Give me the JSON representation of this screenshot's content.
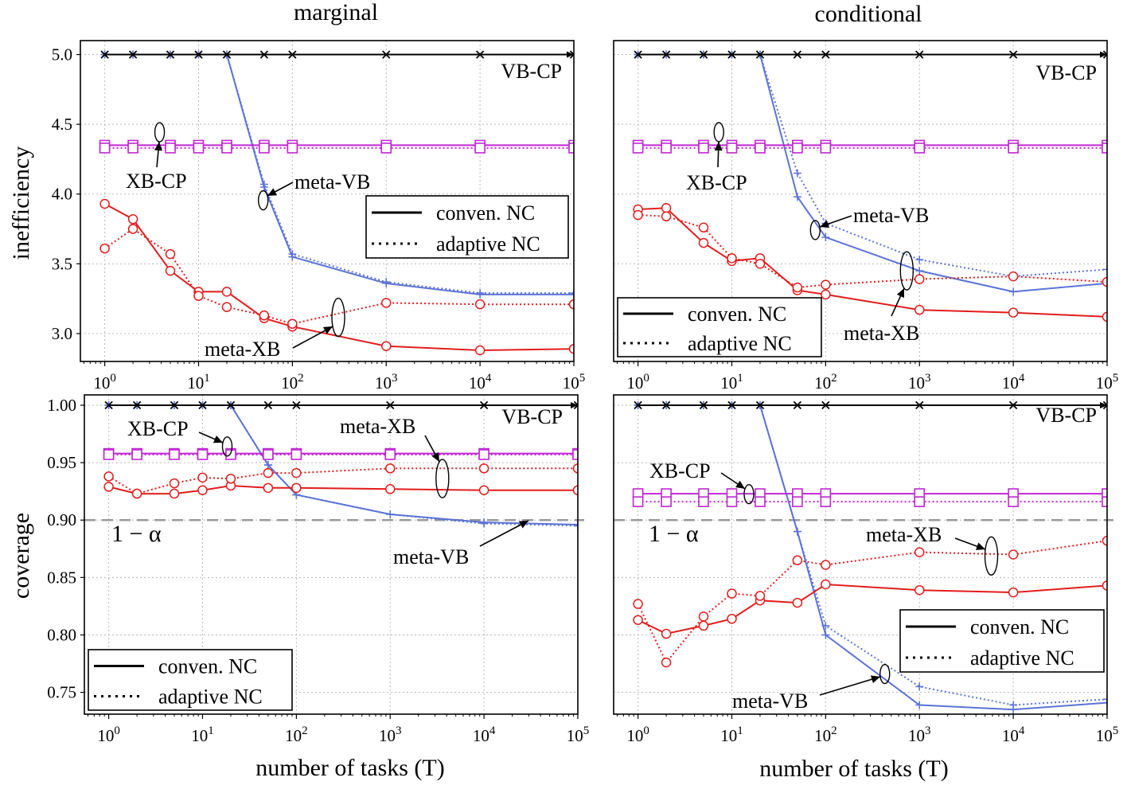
{
  "figure": {
    "col_titles": [
      "marginal",
      "conditional"
    ],
    "xlabel": "number of tasks (T)",
    "ylabels": [
      "inefficiency",
      "coverage"
    ]
  },
  "legend": {
    "solid_label": "conven. NC",
    "dotted_label": "adaptive NC"
  },
  "colors": {
    "vbcp": "#000000",
    "xbcp": "#c026d3",
    "metavb": "#5b73d6",
    "metaxb": "#e21d1d",
    "target": "#999999"
  },
  "chart_data": [
    {
      "panel": "top-left",
      "type": "line",
      "title": "marginal",
      "ylabel": "inefficiency",
      "xlabel": "",
      "xscale": "log",
      "xlim": [
        0.55,
        100000
      ],
      "ylim": [
        2.8,
        5.1
      ],
      "yticks": [
        3.0,
        3.5,
        4.0,
        4.5,
        5.0
      ],
      "ytick_labels": [
        "3.0",
        "3.5",
        "4.0",
        "4.5",
        "5.0"
      ],
      "xticks": [
        1,
        10,
        100,
        1000,
        10000,
        100000
      ],
      "xtick_labels": [
        "10^0",
        "10^1",
        "10^2",
        "10^3",
        "10^4",
        "10^5"
      ],
      "x": [
        1,
        2,
        5,
        10,
        20,
        50,
        100,
        1000,
        10000,
        100000
      ],
      "series": [
        {
          "name": "VB-CP conven.",
          "family": "vbcp",
          "style": "solid",
          "values": [
            5.0,
            5.0,
            5.0,
            5.0,
            5.0,
            5.0,
            5.0,
            5.0,
            5.0,
            5.0
          ]
        },
        {
          "name": "VB-CP adaptive",
          "family": "vbcp",
          "style": "dotted",
          "values": [
            5.0,
            5.0,
            5.0,
            5.0,
            5.0,
            5.0,
            5.0,
            5.0,
            5.0,
            5.0
          ]
        },
        {
          "name": "XB-CP conven.",
          "family": "xbcp",
          "style": "solid",
          "values": [
            4.35,
            4.35,
            4.35,
            4.35,
            4.35,
            4.35,
            4.35,
            4.35,
            4.35,
            4.35
          ]
        },
        {
          "name": "XB-CP adaptive",
          "family": "xbcp",
          "style": "dotted",
          "values": [
            4.33,
            4.33,
            4.33,
            4.33,
            4.33,
            4.33,
            4.33,
            4.33,
            4.33,
            4.33
          ]
        },
        {
          "name": "meta-VB conven.",
          "family": "metavb",
          "style": "solid",
          "values": [
            5.0,
            5.0,
            5.0,
            5.0,
            5.0,
            4.05,
            3.55,
            3.36,
            3.28,
            3.28
          ]
        },
        {
          "name": "meta-VB adaptive",
          "family": "metavb",
          "style": "dotted",
          "values": [
            5.0,
            5.0,
            5.0,
            5.0,
            5.0,
            4.07,
            3.57,
            3.37,
            3.29,
            3.29
          ]
        },
        {
          "name": "meta-XB conven.",
          "family": "metaxb",
          "style": "solid",
          "values": [
            3.93,
            3.82,
            3.45,
            3.3,
            3.3,
            3.11,
            3.05,
            2.91,
            2.88,
            2.89
          ]
        },
        {
          "name": "meta-XB adaptive",
          "family": "metaxb",
          "style": "dotted",
          "values": [
            3.61,
            3.75,
            3.57,
            3.27,
            3.19,
            3.13,
            3.07,
            3.22,
            3.21,
            3.21
          ]
        }
      ],
      "annotations": [
        "VB-CP",
        "XB-CP",
        "meta-VB",
        "meta-XB"
      ],
      "target_label": "",
      "legend_position": "upper-right"
    },
    {
      "panel": "top-right",
      "type": "line",
      "title": "conditional",
      "ylabel": "",
      "xlabel": "",
      "xscale": "log",
      "xlim": [
        0.55,
        100000
      ],
      "ylim": [
        2.8,
        5.1
      ],
      "yticks": [
        3.0,
        3.5,
        4.0,
        4.5,
        5.0
      ],
      "ytick_labels": [],
      "xticks": [
        1,
        10,
        100,
        1000,
        10000,
        100000
      ],
      "xtick_labels": [
        "10^0",
        "10^1",
        "10^2",
        "10^3",
        "10^4",
        "10^5"
      ],
      "x": [
        1,
        2,
        5,
        10,
        20,
        50,
        100,
        1000,
        10000,
        100000
      ],
      "series": [
        {
          "name": "VB-CP conven.",
          "family": "vbcp",
          "style": "solid",
          "values": [
            5.0,
            5.0,
            5.0,
            5.0,
            5.0,
            5.0,
            5.0,
            5.0,
            5.0,
            5.0
          ]
        },
        {
          "name": "VB-CP adaptive",
          "family": "vbcp",
          "style": "dotted",
          "values": [
            5.0,
            5.0,
            5.0,
            5.0,
            5.0,
            5.0,
            5.0,
            5.0,
            5.0,
            5.0
          ]
        },
        {
          "name": "XB-CP conven.",
          "family": "xbcp",
          "style": "solid",
          "values": [
            4.35,
            4.35,
            4.35,
            4.35,
            4.35,
            4.35,
            4.35,
            4.35,
            4.35,
            4.35
          ]
        },
        {
          "name": "XB-CP adaptive",
          "family": "xbcp",
          "style": "dotted",
          "values": [
            4.33,
            4.33,
            4.33,
            4.33,
            4.33,
            4.33,
            4.33,
            4.33,
            4.33,
            4.33
          ]
        },
        {
          "name": "meta-VB conven.",
          "family": "metavb",
          "style": "solid",
          "values": [
            5.0,
            5.0,
            5.0,
            5.0,
            5.0,
            3.98,
            3.69,
            3.45,
            3.3,
            3.36
          ]
        },
        {
          "name": "meta-VB adaptive",
          "family": "metavb",
          "style": "dotted",
          "values": [
            5.0,
            5.0,
            5.0,
            5.0,
            5.0,
            4.15,
            3.79,
            3.53,
            3.41,
            3.46
          ]
        },
        {
          "name": "meta-XB conven.",
          "family": "metaxb",
          "style": "solid",
          "values": [
            3.89,
            3.9,
            3.65,
            3.52,
            3.54,
            3.31,
            3.28,
            3.17,
            3.15,
            3.12
          ]
        },
        {
          "name": "meta-XB adaptive",
          "family": "metaxb",
          "style": "dotted",
          "values": [
            3.85,
            3.84,
            3.76,
            3.54,
            3.5,
            3.33,
            3.35,
            3.39,
            3.41,
            3.37
          ]
        }
      ],
      "annotations": [
        "VB-CP",
        "XB-CP",
        "meta-VB",
        "meta-XB"
      ],
      "target_label": "",
      "legend_position": "lower-left"
    },
    {
      "panel": "bottom-left",
      "type": "line",
      "title": "",
      "ylabel": "coverage",
      "xlabel": "number of tasks (T)",
      "xscale": "log",
      "xlim": [
        0.55,
        100000
      ],
      "ylim": [
        0.731,
        1.009
      ],
      "yticks": [
        0.75,
        0.8,
        0.85,
        0.9,
        0.95,
        1.0
      ],
      "ytick_labels": [
        "0.75",
        "0.80",
        "0.85",
        "0.90",
        "0.95",
        "1.00"
      ],
      "xticks": [
        1,
        10,
        100,
        1000,
        10000,
        100000
      ],
      "xtick_labels": [
        "10^0",
        "10^1",
        "10^2",
        "10^3",
        "10^4",
        "10^5"
      ],
      "x": [
        1,
        2,
        5,
        10,
        20,
        50,
        100,
        1000,
        10000,
        100000
      ],
      "series": [
        {
          "name": "VB-CP conven.",
          "family": "vbcp",
          "style": "solid",
          "values": [
            1.0,
            1.0,
            1.0,
            1.0,
            1.0,
            1.0,
            1.0,
            1.0,
            1.0,
            1.0
          ]
        },
        {
          "name": "VB-CP adaptive",
          "family": "vbcp",
          "style": "dotted",
          "values": [
            1.0,
            1.0,
            1.0,
            1.0,
            1.0,
            1.0,
            1.0,
            1.0,
            1.0,
            1.0
          ]
        },
        {
          "name": "XB-CP conven.",
          "family": "xbcp",
          "style": "solid",
          "values": [
            0.958,
            0.958,
            0.958,
            0.958,
            0.958,
            0.958,
            0.958,
            0.958,
            0.958,
            0.958
          ]
        },
        {
          "name": "XB-CP adaptive",
          "family": "xbcp",
          "style": "dotted",
          "values": [
            0.957,
            0.957,
            0.957,
            0.957,
            0.957,
            0.957,
            0.957,
            0.957,
            0.957,
            0.957
          ]
        },
        {
          "name": "meta-VB conven.",
          "family": "metavb",
          "style": "solid",
          "values": [
            1.0,
            1.0,
            1.0,
            1.0,
            1.0,
            0.948,
            0.922,
            0.905,
            0.898,
            0.896
          ]
        },
        {
          "name": "meta-VB adaptive",
          "family": "metavb",
          "style": "dotted",
          "values": [
            1.0,
            1.0,
            1.0,
            1.0,
            1.0,
            0.948,
            0.922,
            0.905,
            0.897,
            0.895
          ]
        },
        {
          "name": "meta-XB conven.",
          "family": "metaxb",
          "style": "solid",
          "values": [
            0.929,
            0.923,
            0.923,
            0.926,
            0.93,
            0.928,
            0.928,
            0.927,
            0.926,
            0.926
          ]
        },
        {
          "name": "meta-XB adaptive",
          "family": "metaxb",
          "style": "dotted",
          "values": [
            0.938,
            0.923,
            0.932,
            0.937,
            0.936,
            0.941,
            0.941,
            0.945,
            0.945,
            0.945
          ]
        }
      ],
      "target": 0.9,
      "target_label": "1 − α",
      "annotations": [
        "VB-CP",
        "XB-CP",
        "meta-XB",
        "meta-VB"
      ],
      "legend_position": "lower-left"
    },
    {
      "panel": "bottom-right",
      "type": "line",
      "title": "",
      "ylabel": "",
      "xlabel": "number of tasks (T)",
      "xscale": "log",
      "xlim": [
        0.55,
        100000
      ],
      "ylim": [
        0.731,
        1.009
      ],
      "yticks": [
        0.75,
        0.8,
        0.85,
        0.9,
        0.95,
        1.0
      ],
      "ytick_labels": [],
      "xticks": [
        1,
        10,
        100,
        1000,
        10000,
        100000
      ],
      "xtick_labels": [
        "10^0",
        "10^1",
        "10^2",
        "10^3",
        "10^4",
        "10^5"
      ],
      "x": [
        1,
        2,
        5,
        10,
        20,
        50,
        100,
        1000,
        10000,
        100000
      ],
      "series": [
        {
          "name": "VB-CP conven.",
          "family": "vbcp",
          "style": "solid",
          "values": [
            1.0,
            1.0,
            1.0,
            1.0,
            1.0,
            1.0,
            1.0,
            1.0,
            1.0,
            1.0
          ]
        },
        {
          "name": "VB-CP adaptive",
          "family": "vbcp",
          "style": "dotted",
          "values": [
            1.0,
            1.0,
            1.0,
            1.0,
            1.0,
            1.0,
            1.0,
            1.0,
            1.0,
            1.0
          ]
        },
        {
          "name": "XB-CP conven.",
          "family": "xbcp",
          "style": "solid",
          "values": [
            0.923,
            0.923,
            0.923,
            0.923,
            0.923,
            0.923,
            0.923,
            0.923,
            0.923,
            0.923
          ]
        },
        {
          "name": "XB-CP adaptive",
          "family": "xbcp",
          "style": "dotted",
          "values": [
            0.916,
            0.916,
            0.916,
            0.916,
            0.916,
            0.916,
            0.916,
            0.916,
            0.916,
            0.916
          ]
        },
        {
          "name": "meta-VB conven.",
          "family": "metavb",
          "style": "solid",
          "values": [
            1.0,
            1.0,
            1.0,
            1.0,
            1.0,
            0.89,
            0.8,
            0.739,
            0.735,
            0.741
          ]
        },
        {
          "name": "meta-VB adaptive",
          "family": "metavb",
          "style": "dotted",
          "values": [
            1.0,
            1.0,
            1.0,
            1.0,
            1.0,
            0.89,
            0.808,
            0.755,
            0.739,
            0.744
          ]
        },
        {
          "name": "meta-XB conven.",
          "family": "metaxb",
          "style": "solid",
          "values": [
            0.813,
            0.801,
            0.808,
            0.814,
            0.83,
            0.828,
            0.844,
            0.839,
            0.837,
            0.843
          ]
        },
        {
          "name": "meta-XB adaptive",
          "family": "metaxb",
          "style": "dotted",
          "values": [
            0.827,
            0.776,
            0.816,
            0.836,
            0.834,
            0.865,
            0.861,
            0.872,
            0.87,
            0.882
          ]
        }
      ],
      "target": 0.9,
      "target_label": "1 − α",
      "annotations": [
        "VB-CP",
        "XB-CP",
        "meta-XB",
        "meta-VB"
      ],
      "legend_position": "lower-right"
    }
  ]
}
